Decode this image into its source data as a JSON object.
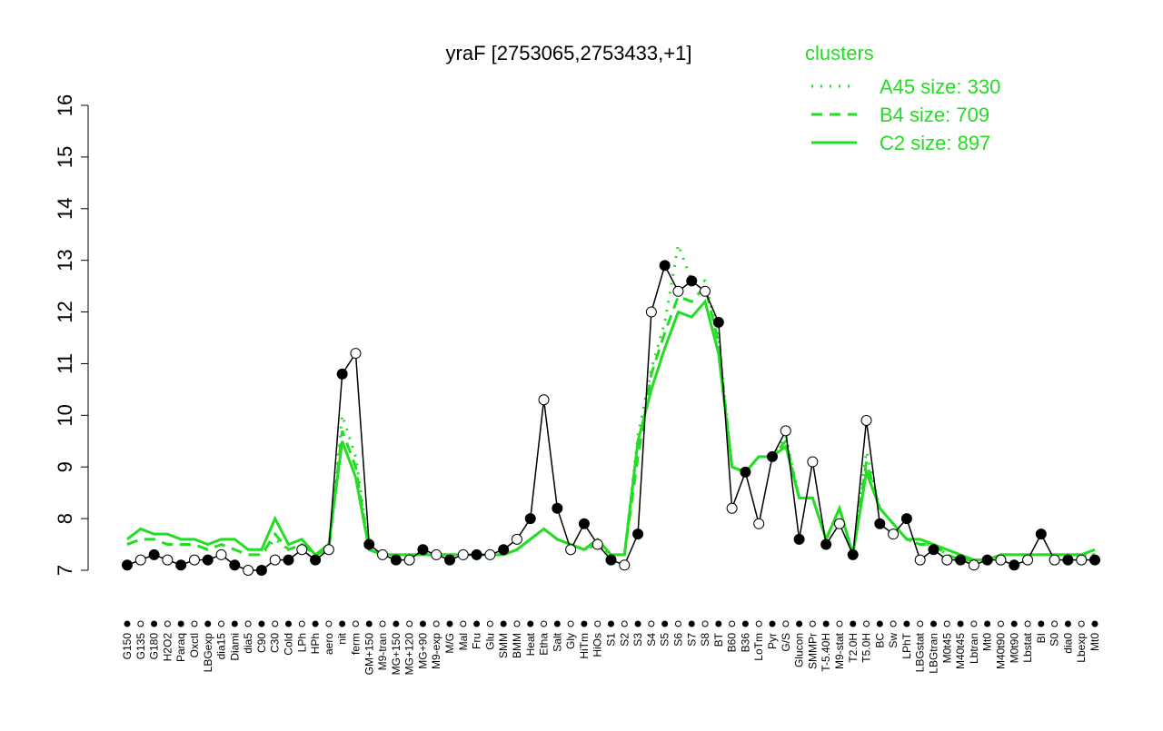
{
  "chart_data": {
    "type": "line",
    "title": "yraF [2753065,2753433,+1]",
    "legend_title": "clusters",
    "categories": [
      "G150",
      "G135",
      "G180",
      "H2O2",
      "Paraq",
      "Oxctl",
      "LBGexp",
      "dia15",
      "Diami",
      "dia5",
      "C90",
      "C30",
      "Cold",
      "LPh",
      "HPh",
      "aero",
      "nit",
      "ferm",
      "GM+150",
      "M9-tran",
      "MG+150",
      "MG+120",
      "MG+90",
      "M9-exp",
      "M/G",
      "Mal",
      "Fru",
      "Glu",
      "SMM",
      "BMM",
      "Heat",
      "Etha",
      "Salt",
      "Gly",
      "HiTm",
      "HiOs",
      "S1",
      "S2",
      "S3",
      "S4",
      "S5",
      "S6",
      "S7",
      "S8",
      "BT",
      "B60",
      "B36",
      "LoTm",
      "Pyr",
      "G/S",
      "Glucon",
      "SMMPr",
      "T-5.40H",
      "M9-stat",
      "T2.0H",
      "T5.0H",
      "BC",
      "Sw",
      "LPhT",
      "LBGstat",
      "LBGtran",
      "M0t45",
      "M40t45",
      "Lbtran",
      "Mt0",
      "M40t90",
      "M0t90",
      "Lbstat",
      "BI",
      "S0",
      "dia0",
      "Lbexp",
      "Mt0"
    ],
    "values": [
      7.1,
      7.2,
      7.3,
      7.2,
      7.1,
      7.2,
      7.2,
      7.3,
      7.1,
      7.0,
      7.0,
      7.2,
      7.2,
      7.4,
      7.2,
      7.4,
      10.8,
      11.2,
      7.5,
      7.3,
      7.2,
      7.2,
      7.4,
      7.3,
      7.2,
      7.3,
      7.3,
      7.3,
      7.4,
      7.6,
      8.0,
      10.3,
      8.2,
      7.4,
      7.9,
      7.5,
      7.2,
      7.1,
      7.7,
      12.0,
      12.9,
      12.4,
      12.6,
      12.4,
      11.8,
      8.2,
      8.9,
      7.9,
      9.2,
      9.7,
      7.6,
      9.1,
      7.5,
      7.9,
      7.3,
      9.9,
      7.9,
      7.7,
      8.0,
      7.2,
      7.4,
      7.2,
      7.2,
      7.1,
      7.2,
      7.2,
      7.1,
      7.2,
      7.7,
      7.2,
      7.2,
      7.2,
      7.2
    ],
    "color": "#000000",
    "series": [
      {
        "name": "A45 size: 330",
        "style": "dotted",
        "color": "#22dd22",
        "values": [
          7.5,
          7.6,
          7.6,
          7.5,
          7.5,
          7.5,
          7.4,
          7.5,
          7.4,
          7.3,
          7.3,
          7.6,
          7.4,
          7.5,
          7.3,
          7.4,
          10.0,
          9.2,
          7.4,
          7.3,
          7.3,
          7.3,
          7.3,
          7.3,
          7.3,
          7.3,
          7.3,
          7.3,
          7.3,
          7.4,
          7.6,
          7.8,
          7.6,
          7.5,
          7.4,
          7.5,
          7.3,
          7.3,
          9.6,
          10.9,
          11.8,
          13.3,
          12.6,
          12.6,
          11.5,
          9.0,
          8.9,
          9.2,
          9.2,
          9.6,
          8.4,
          8.4,
          7.6,
          8.2,
          7.3,
          9.3,
          8.2,
          7.9,
          7.6,
          7.5,
          7.5,
          7.3,
          7.2,
          7.2,
          7.2,
          7.3,
          7.3,
          7.3,
          7.3,
          7.3,
          7.3,
          7.3,
          7.3
        ]
      },
      {
        "name": "B4 size: 709",
        "style": "dashed",
        "color": "#22dd22",
        "values": [
          7.5,
          7.6,
          7.6,
          7.5,
          7.5,
          7.5,
          7.4,
          7.5,
          7.4,
          7.3,
          7.3,
          7.7,
          7.4,
          7.5,
          7.3,
          7.4,
          9.7,
          9.0,
          7.4,
          7.3,
          7.3,
          7.3,
          7.3,
          7.3,
          7.3,
          7.3,
          7.3,
          7.3,
          7.3,
          7.4,
          7.6,
          7.8,
          7.6,
          7.5,
          7.4,
          7.5,
          7.3,
          7.3,
          9.2,
          10.8,
          11.6,
          12.3,
          12.2,
          12.5,
          11.4,
          9.0,
          8.9,
          9.2,
          9.2,
          9.5,
          8.4,
          8.4,
          7.6,
          8.2,
          7.3,
          9.1,
          8.2,
          7.9,
          7.6,
          7.5,
          7.5,
          7.3,
          7.2,
          7.2,
          7.2,
          7.3,
          7.3,
          7.3,
          7.3,
          7.3,
          7.3,
          7.3,
          7.3
        ]
      },
      {
        "name": "C2 size: 897",
        "style": "solid",
        "color": "#22dd22",
        "values": [
          7.6,
          7.8,
          7.7,
          7.7,
          7.6,
          7.6,
          7.5,
          7.6,
          7.6,
          7.4,
          7.4,
          8.0,
          7.5,
          7.6,
          7.3,
          7.5,
          9.5,
          8.8,
          7.4,
          7.3,
          7.3,
          7.3,
          7.3,
          7.3,
          7.3,
          7.3,
          7.3,
          7.3,
          7.3,
          7.4,
          7.6,
          7.8,
          7.6,
          7.5,
          7.4,
          7.6,
          7.3,
          7.3,
          9.5,
          10.5,
          11.3,
          12.0,
          11.9,
          12.2,
          11.2,
          9.0,
          8.9,
          9.2,
          9.2,
          9.4,
          8.4,
          8.4,
          7.6,
          8.2,
          7.3,
          8.9,
          8.2,
          7.9,
          7.6,
          7.6,
          7.5,
          7.4,
          7.3,
          7.2,
          7.2,
          7.3,
          7.3,
          7.3,
          7.3,
          7.3,
          7.3,
          7.3,
          7.4
        ]
      }
    ],
    "ylim": [
      7,
      16
    ],
    "yticks": [
      7,
      8,
      9,
      10,
      11,
      12,
      13,
      14,
      15,
      16
    ]
  }
}
